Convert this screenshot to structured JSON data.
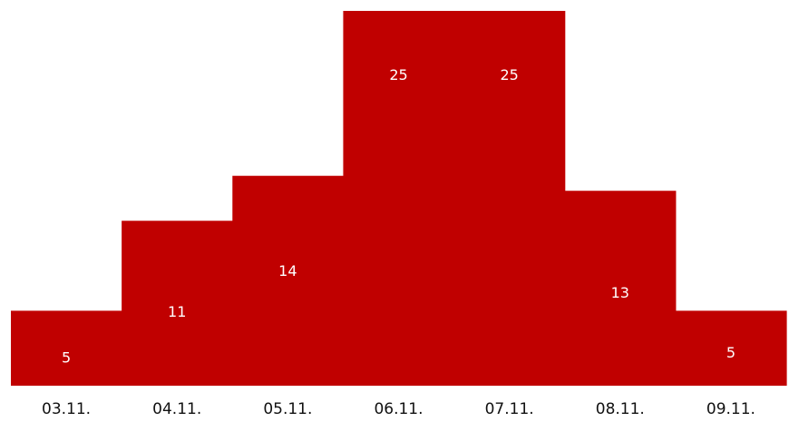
{
  "chart_data": {
    "type": "bar",
    "categories": [
      "03.11.",
      "04.11.",
      "05.11.",
      "06.11.",
      "07.11.",
      "08.11.",
      "09.11."
    ],
    "values": [
      5,
      11,
      14,
      25,
      25,
      13,
      5
    ],
    "data_labels": [
      "5",
      "11",
      "14",
      "25",
      "25",
      "13",
      "5"
    ],
    "title": "",
    "xlabel": "",
    "ylabel": "",
    "ylim": [
      0,
      25
    ],
    "grid": false,
    "legend": "none",
    "bar_color": "#c00000",
    "label_color": "#ffffff"
  }
}
